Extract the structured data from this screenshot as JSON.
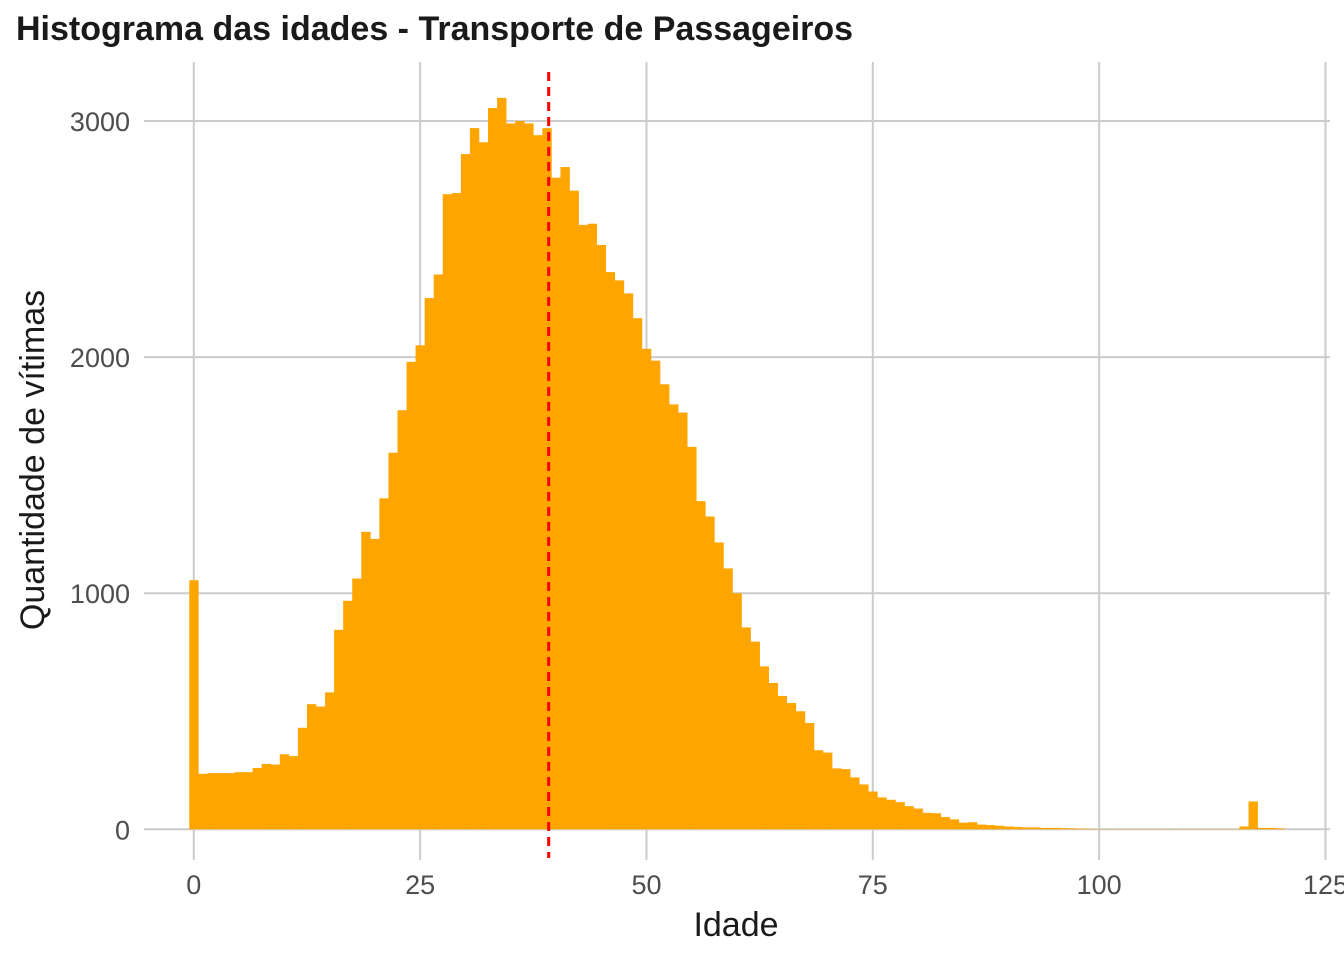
{
  "chart_data": {
    "type": "bar",
    "title": "Histograma das idades - Transporte de Passageiros",
    "xlabel": "Idade",
    "ylabel": "Quantidade de vítimas",
    "xlim": [
      -5.5,
      125.5
    ],
    "ylim": [
      -130,
      3250
    ],
    "xticks": [
      0,
      25,
      50,
      75,
      100,
      125
    ],
    "xtick_labels": [
      "0",
      "25",
      "50",
      "75",
      "100",
      "125"
    ],
    "yticks": [
      0,
      1000,
      2000,
      3000
    ],
    "ytick_labels": [
      "0",
      "1000",
      "2000",
      "3000"
    ],
    "grid": true,
    "legend": "none",
    "bin_width": 1,
    "bar_color": "#FFA500",
    "bins_x": [
      0,
      1,
      2,
      3,
      4,
      5,
      6,
      7,
      8,
      9,
      10,
      11,
      12,
      13,
      14,
      15,
      16,
      17,
      18,
      19,
      20,
      21,
      22,
      23,
      24,
      25,
      26,
      27,
      28,
      29,
      30,
      31,
      32,
      33,
      34,
      35,
      36,
      37,
      38,
      39,
      40,
      41,
      42,
      43,
      44,
      45,
      46,
      47,
      48,
      49,
      50,
      51,
      52,
      53,
      54,
      55,
      56,
      57,
      58,
      59,
      60,
      61,
      62,
      63,
      64,
      65,
      66,
      67,
      68,
      69,
      70,
      71,
      72,
      73,
      74,
      75,
      76,
      77,
      78,
      79,
      80,
      81,
      82,
      83,
      84,
      85,
      86,
      87,
      88,
      89,
      90,
      91,
      92,
      93,
      94,
      95,
      96,
      97,
      98,
      99,
      100,
      101,
      102,
      103,
      104,
      105,
      106,
      107,
      108,
      109,
      110,
      111,
      112,
      113,
      114,
      115,
      116,
      117,
      118,
      119,
      120
    ],
    "values": [
      1055,
      235,
      238,
      238,
      238,
      242,
      242,
      260,
      277,
      274,
      318,
      310,
      430,
      530,
      520,
      580,
      845,
      968,
      1062,
      1260,
      1230,
      1402,
      1595,
      1775,
      1980,
      2050,
      2250,
      2350,
      2690,
      2695,
      2860,
      2970,
      2910,
      3055,
      3098,
      2990,
      3000,
      2990,
      2940,
      2970,
      2760,
      2805,
      2705,
      2560,
      2565,
      2475,
      2360,
      2325,
      2270,
      2165,
      2035,
      1985,
      1885,
      1800,
      1765,
      1620,
      1390,
      1325,
      1215,
      1105,
      1000,
      855,
      795,
      690,
      620,
      565,
      535,
      500,
      450,
      335,
      325,
      258,
      255,
      220,
      190,
      160,
      135,
      125,
      115,
      98,
      88,
      70,
      68,
      52,
      42,
      28,
      30,
      20,
      18,
      15,
      12,
      10,
      8,
      8,
      6,
      6,
      5,
      4,
      3,
      2,
      1,
      1,
      1,
      1,
      1,
      1,
      1,
      1,
      1,
      1,
      1,
      1,
      1,
      1,
      1,
      1,
      12,
      118,
      6,
      6,
      4
    ],
    "mean_line": {
      "x": 39.2,
      "color": "#FF0000",
      "style": "dashed"
    }
  }
}
